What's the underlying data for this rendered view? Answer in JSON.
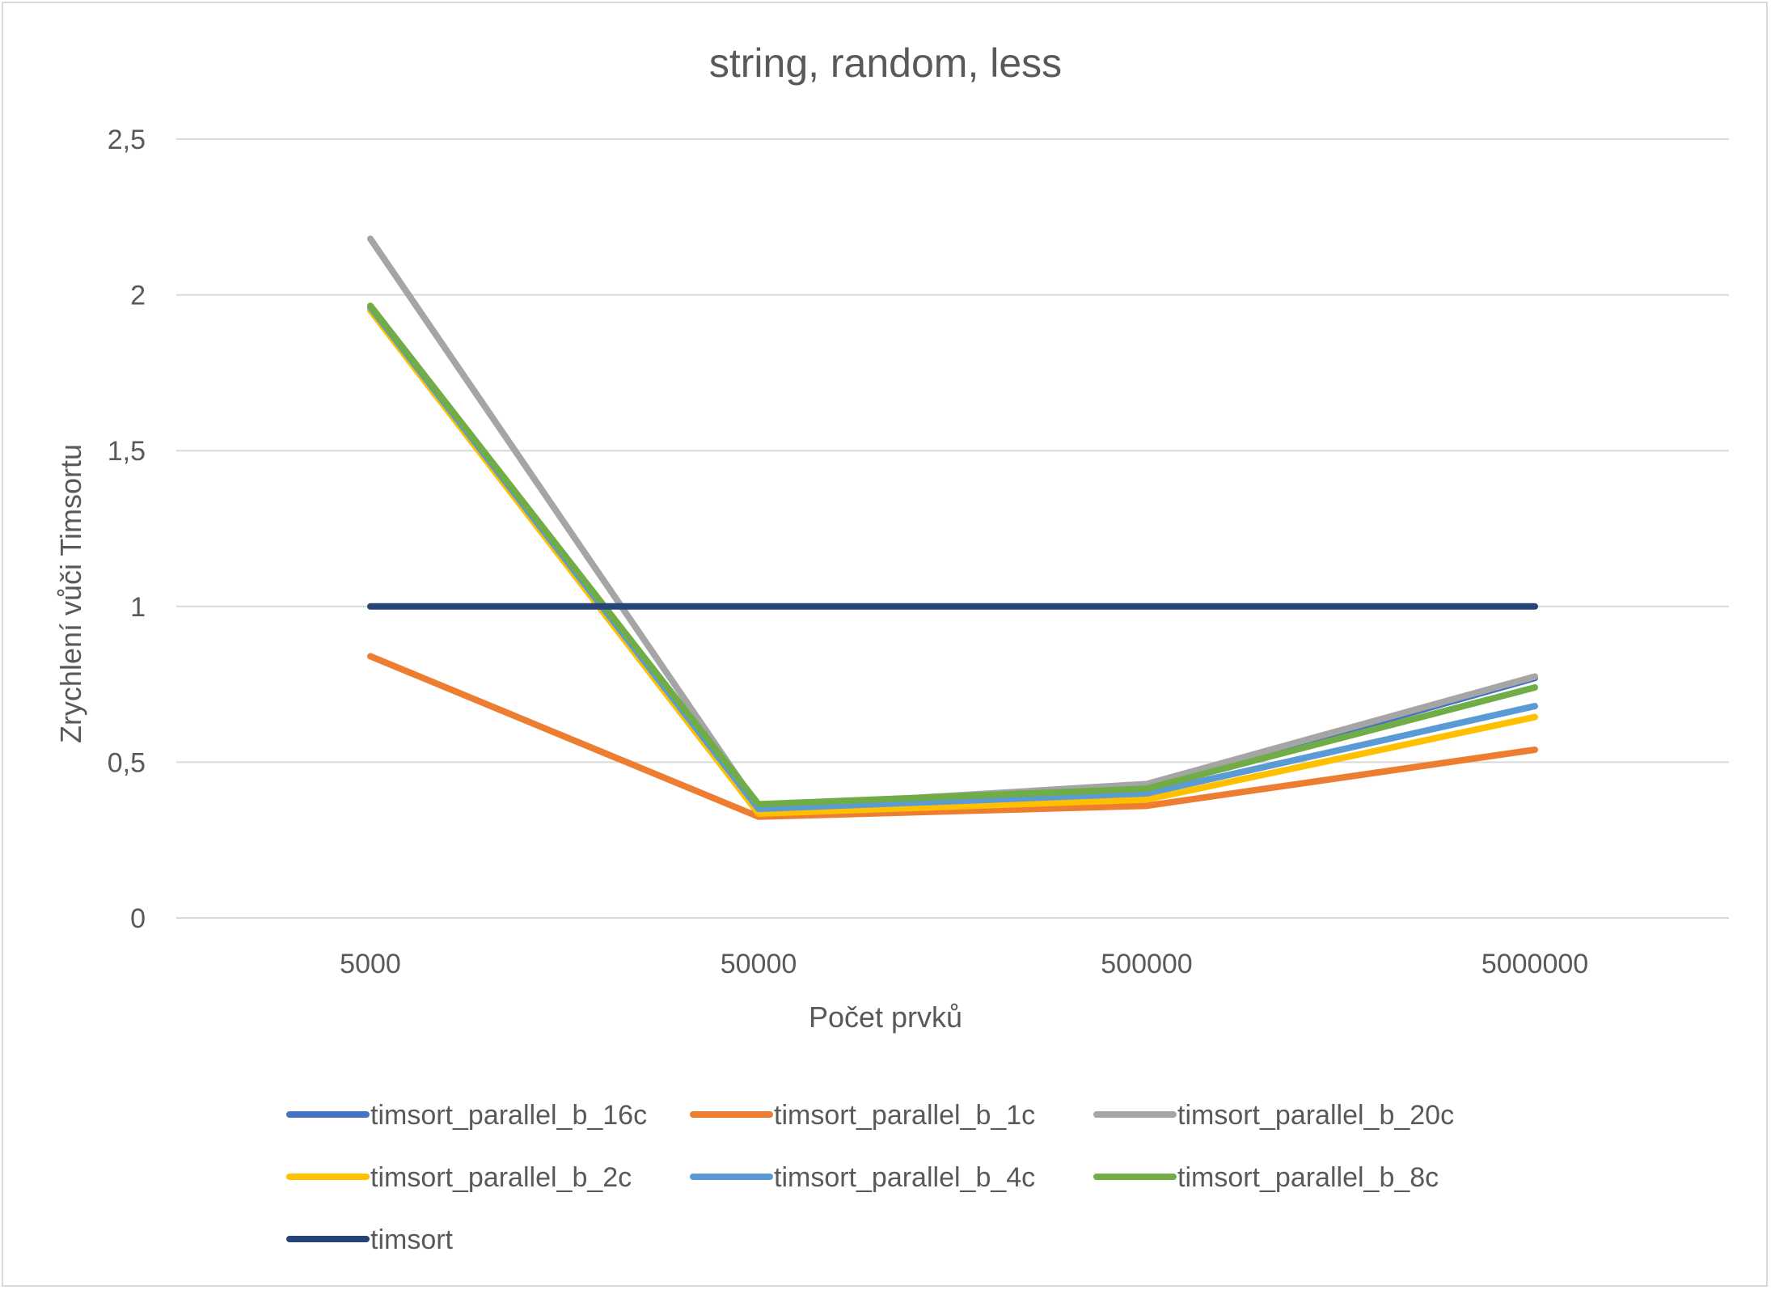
{
  "chart_data": {
    "type": "line",
    "title": "string, random, less",
    "xlabel": "Počet prvků",
    "ylabel": "Zrychlení vůči Timsortu",
    "categories": [
      "5000",
      "50000",
      "500000",
      "5000000"
    ],
    "ylim": [
      0,
      2.5
    ],
    "yticks": [
      0,
      0.5,
      1,
      1.5,
      2,
      2.5
    ],
    "ytick_labels": [
      "0",
      "0,5",
      "1",
      "1,5",
      "2",
      "2,5"
    ],
    "grid": true,
    "legend_position": "bottom",
    "series": [
      {
        "name": "timsort_parallel_b_16c",
        "color": "#4472c4",
        "values": [
          1.96,
          0.355,
          0.42,
          0.77
        ]
      },
      {
        "name": "timsort_parallel_b_1c",
        "color": "#ed7d31",
        "values": [
          0.84,
          0.325,
          0.36,
          0.54
        ]
      },
      {
        "name": "timsort_parallel_b_20c",
        "color": "#a5a5a5",
        "values": [
          2.18,
          0.355,
          0.43,
          0.775
        ]
      },
      {
        "name": "timsort_parallel_b_2c",
        "color": "#ffc000",
        "values": [
          1.95,
          0.335,
          0.38,
          0.645
        ]
      },
      {
        "name": "timsort_parallel_b_4c",
        "color": "#5b9bd5",
        "values": [
          1.96,
          0.35,
          0.4,
          0.68
        ]
      },
      {
        "name": "timsort_parallel_b_8c",
        "color": "#70ad47",
        "values": [
          1.965,
          0.365,
          0.415,
          0.74
        ]
      },
      {
        "name": "timsort",
        "color": "#264478",
        "values": [
          1,
          1,
          1,
          1
        ]
      }
    ]
  }
}
